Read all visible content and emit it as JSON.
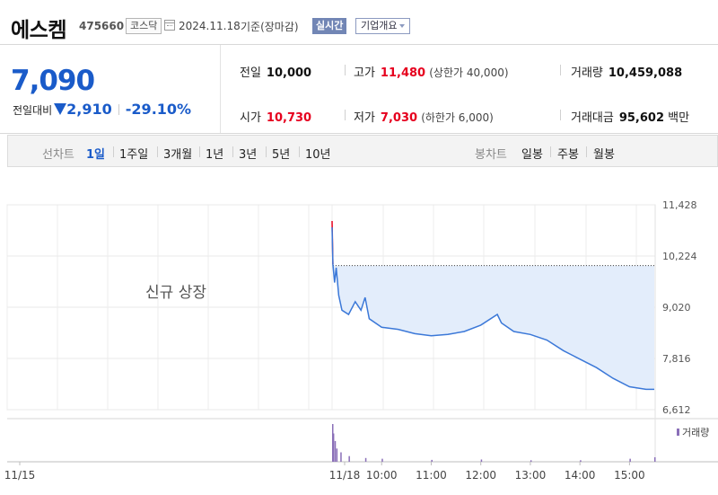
{
  "stock": {
    "name": "에스켐",
    "code": "475660",
    "market": "코스닥",
    "date": "2024.11.18",
    "basis": "기준(장마감)",
    "realtime_label": "실시간",
    "overview_label": "기업개요"
  },
  "price": {
    "current": "7,090",
    "change_label": "전일대비",
    "change_amount": "2,910",
    "change_pct": "-29.10%",
    "direction": "down"
  },
  "quote": {
    "prev_close_label": "전일",
    "prev_close": "10,000",
    "high_label": "고가",
    "high": "11,480",
    "upper_limit": "(상한가 40,000)",
    "volume_label": "거래량",
    "volume": "10,459,088",
    "open_label": "시가",
    "open": "10,730",
    "low_label": "저가",
    "low": "7,030",
    "lower_limit": "(하한가 6,000)",
    "value_label": "거래대금",
    "value": "95,602",
    "value_unit": "백만"
  },
  "tabs": {
    "line_chart_label": "선차트",
    "line_periods": [
      "1일",
      "1주일",
      "3개월",
      "1년",
      "3년",
      "5년",
      "10년"
    ],
    "active_period": "1일",
    "candle_chart_label": "봉차트",
    "candle_periods": [
      "일봉",
      "주봉",
      "월봉"
    ]
  },
  "chart_data": {
    "type": "line",
    "annotation": "신규 상장",
    "y_ticks": [
      "11,428",
      "10,224",
      "9,020",
      "7,816",
      "6,612"
    ],
    "ylim": [
      6612,
      11428
    ],
    "reference_price": 10000,
    "x_ticks": [
      "11/15",
      "11/18",
      "10:00",
      "11:00",
      "12:00",
      "13:00",
      "14:00",
      "15:00"
    ],
    "volume_legend": "거래량",
    "colors": {
      "line": "#3b78d8",
      "fill": "#e3edfb",
      "up": "#e6001e",
      "volume": "#8a6fb8"
    },
    "price_series": [
      {
        "t": "09:00",
        "y": 10900
      },
      {
        "t": "09:01",
        "y": 10030
      },
      {
        "t": "09:03",
        "y": 9600
      },
      {
        "t": "09:05",
        "y": 9950
      },
      {
        "t": "09:08",
        "y": 9300
      },
      {
        "t": "09:12",
        "y": 8950
      },
      {
        "t": "09:20",
        "y": 8850
      },
      {
        "t": "09:28",
        "y": 9150
      },
      {
        "t": "09:35",
        "y": 8950
      },
      {
        "t": "09:40",
        "y": 9250
      },
      {
        "t": "09:45",
        "y": 8750
      },
      {
        "t": "10:00",
        "y": 8550
      },
      {
        "t": "10:20",
        "y": 8500
      },
      {
        "t": "10:40",
        "y": 8400
      },
      {
        "t": "11:00",
        "y": 8350
      },
      {
        "t": "11:20",
        "y": 8380
      },
      {
        "t": "11:40",
        "y": 8450
      },
      {
        "t": "12:00",
        "y": 8600
      },
      {
        "t": "12:20",
        "y": 8850
      },
      {
        "t": "12:25",
        "y": 8650
      },
      {
        "t": "12:40",
        "y": 8450
      },
      {
        "t": "13:00",
        "y": 8380
      },
      {
        "t": "13:20",
        "y": 8250
      },
      {
        "t": "13:40",
        "y": 8000
      },
      {
        "t": "14:00",
        "y": 7800
      },
      {
        "t": "14:20",
        "y": 7600
      },
      {
        "t": "14:40",
        "y": 7350
      },
      {
        "t": "15:00",
        "y": 7150
      },
      {
        "t": "15:20",
        "y": 7090
      },
      {
        "t": "15:30",
        "y": 7090
      }
    ],
    "opening_spike": [
      {
        "t": "09:00",
        "y": 11428
      },
      {
        "t": "09:01",
        "y": 10030
      }
    ],
    "volume_series": [
      {
        "t": "09:00",
        "v": 100
      },
      {
        "t": "09:01",
        "v": 75
      },
      {
        "t": "09:03",
        "v": 55
      },
      {
        "t": "09:05",
        "v": 35
      },
      {
        "t": "09:10",
        "v": 25
      },
      {
        "t": "09:20",
        "v": 15
      },
      {
        "t": "09:40",
        "v": 10
      },
      {
        "t": "10:00",
        "v": 8
      },
      {
        "t": "11:00",
        "v": 5
      },
      {
        "t": "12:00",
        "v": 6
      },
      {
        "t": "13:00",
        "v": 4
      },
      {
        "t": "14:00",
        "v": 4
      },
      {
        "t": "15:00",
        "v": 8
      },
      {
        "t": "15:30",
        "v": 12
      }
    ]
  }
}
